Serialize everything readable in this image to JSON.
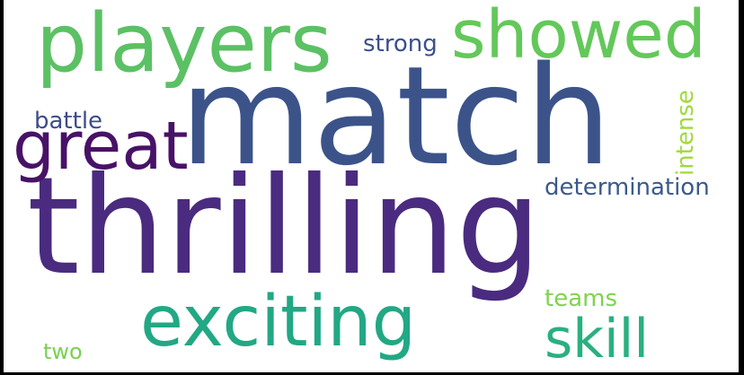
{
  "words": [
    {
      "text": "thrilling",
      "color": "#4a2b7f"
    },
    {
      "text": "match",
      "color": "#3c538a"
    },
    {
      "text": "players",
      "color": "#5bc164"
    },
    {
      "text": "showed",
      "color": "#63c85a"
    },
    {
      "text": "great",
      "color": "#481267"
    },
    {
      "text": "exciting",
      "color": "#22a884"
    },
    {
      "text": "skill",
      "color": "#2ab07f"
    },
    {
      "text": "strong",
      "color": "#3c4f8a"
    },
    {
      "text": "battle",
      "color": "#3d4b89"
    },
    {
      "text": "determination",
      "color": "#3a5a8c"
    },
    {
      "text": "teams",
      "color": "#7fd34e"
    },
    {
      "text": "two",
      "color": "#7ad151"
    },
    {
      "text": "intense",
      "color": "#a0da39"
    }
  ]
}
